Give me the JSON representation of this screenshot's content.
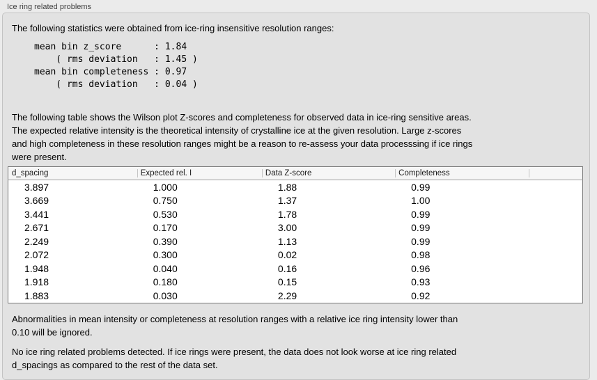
{
  "window": {
    "group_label": "Ice ring related problems"
  },
  "panel": {
    "intro": "The following statistics were obtained from ice-ring insensitive resolution ranges:",
    "stats_block": "mean bin z_score      : 1.84\n    ( rms deviation   : 1.45 )\nmean bin completeness : 0.97\n    ( rms deviation   : 0.04 )",
    "table_description": "The following table shows the Wilson plot Z-scores and completeness for observed data in ice-ring sensitive areas.\nThe expected relative intensity is the theoretical intensity of crystalline ice at the given resolution. Large z-scores\nand high completeness in these resolution ranges might be a reason to re-assess your data processsing if ice rings\nwere present.",
    "note_ignore": "Abnormalities in mean intensity or completeness at resolution ranges with a relative ice ring intensity lower than\n0.10 will be ignored.",
    "conclusion": "No ice ring related problems detected. If ice rings were present, the data does not look worse at ice ring related\nd_spacings as compared to the rest of the data set."
  },
  "stats": {
    "mean_bin_z_score": "1.84",
    "z_score_rms_deviation": "1.45",
    "mean_bin_completeness": "0.97",
    "completeness_rms_deviation": "0.04"
  },
  "table": {
    "columns": [
      "d_spacing",
      "Expected rel. I",
      "Data Z-score",
      "Completeness"
    ],
    "rows": [
      [
        "3.897",
        "1.000",
        "1.88",
        "0.99"
      ],
      [
        "3.669",
        "0.750",
        "1.37",
        "1.00"
      ],
      [
        "3.441",
        "0.530",
        "1.78",
        "0.99"
      ],
      [
        "2.671",
        "0.170",
        "3.00",
        "0.99"
      ],
      [
        "2.249",
        "0.390",
        "1.13",
        "0.99"
      ],
      [
        "2.072",
        "0.300",
        "0.02",
        "0.98"
      ],
      [
        "1.948",
        "0.040",
        "0.16",
        "0.96"
      ],
      [
        "1.918",
        "0.180",
        "0.15",
        "0.93"
      ],
      [
        "1.883",
        "0.030",
        "2.29",
        "0.92"
      ]
    ]
  },
  "colors": {
    "outer_bg": "#ebebeb",
    "panel_bg": "#e2e2e2",
    "group_border": "#c3c3c3",
    "table_header_bg": "#f6f6f6",
    "table_border": "#757575",
    "label_text": "#3f3f3f",
    "text": "#000000"
  }
}
